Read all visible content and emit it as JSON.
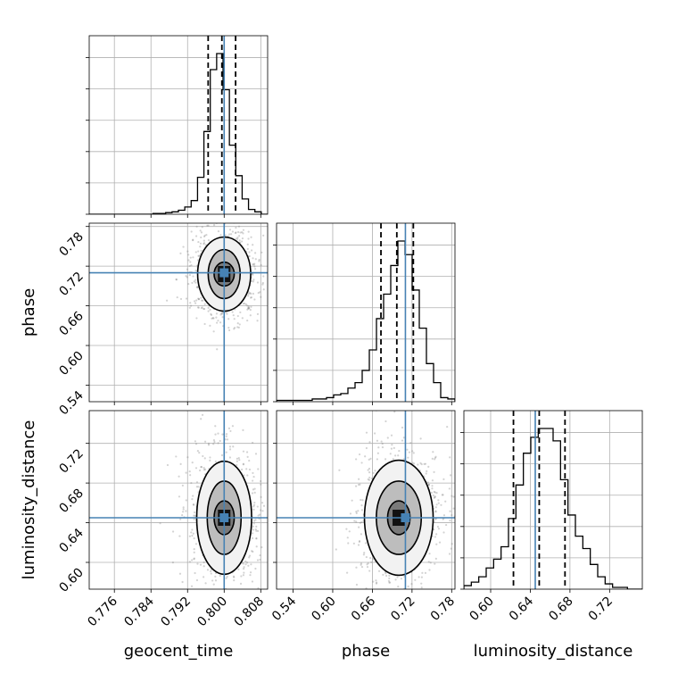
{
  "colors": {
    "truth": "#4682b4",
    "line": "#000000",
    "grid": "#b0b0b0",
    "scatter": "#808080"
  },
  "chart_data": {
    "type": "corner",
    "parameters": [
      "geocent_time",
      "phase",
      "luminosity_distance"
    ],
    "truths": {
      "geocent_time": 0.8,
      "phase": 0.71,
      "luminosity_distance": 0.645
    },
    "quantiles": {
      "geocent_time": [
        0.7965,
        0.7995,
        0.8025
      ],
      "phase": [
        0.673,
        0.697,
        0.722
      ],
      "luminosity_distance": [
        0.623,
        0.649,
        0.675
      ]
    },
    "ranges": {
      "geocent_time": [
        0.7705,
        0.8095
      ],
      "phase": [
        0.515,
        0.785
      ],
      "luminosity_distance": [
        0.573,
        0.753
      ]
    },
    "ticks": {
      "geocent_time": [
        "0.776",
        "0.784",
        "0.792",
        "0.800",
        "0.808"
      ],
      "phase": [
        "0.54",
        "0.60",
        "0.66",
        "0.72",
        "0.78"
      ],
      "luminosity_distance": [
        "0.60",
        "0.64",
        "0.68",
        "0.72"
      ]
    },
    "grid": true,
    "histograms": {
      "geocent_time": {
        "range": [
          0.7705,
          0.8095
        ],
        "counts": [
          0,
          0,
          0,
          0,
          0,
          0,
          0,
          0,
          0,
          0,
          1,
          1,
          2,
          3,
          5,
          9,
          17,
          46,
          103,
          180,
          200,
          155,
          86,
          48,
          19,
          6,
          3,
          0
        ]
      },
      "phase": {
        "range": [
          0.515,
          0.785
        ],
        "counts": [
          1,
          1,
          1,
          1,
          1,
          2,
          2,
          3,
          5,
          6,
          10,
          14,
          23,
          38,
          61,
          79,
          100,
          118,
          108,
          82,
          54,
          28,
          14,
          3,
          2
        ]
      },
      "luminosity_distance": {
        "range": [
          0.573,
          0.753
        ],
        "counts": [
          2,
          4,
          7,
          12,
          17,
          24,
          40,
          59,
          77,
          86,
          91,
          91,
          84,
          62,
          42,
          30,
          23,
          14,
          7,
          3,
          1,
          1,
          0,
          0
        ]
      }
    },
    "contours_2d": [
      {
        "x": "geocent_time",
        "y": "phase",
        "center": [
          0.8,
          0.708
        ],
        "levels_radii": [
          [
            0.0022,
            0.018
          ],
          [
            0.0035,
            0.037
          ],
          [
            0.0058,
            0.056
          ]
        ]
      },
      {
        "x": "geocent_time",
        "y": "luminosity_distance",
        "center": [
          0.8,
          0.645
        ],
        "levels_radii": [
          [
            0.0022,
            0.017
          ],
          [
            0.0037,
            0.037
          ],
          [
            0.006,
            0.057
          ]
        ]
      },
      {
        "x": "phase",
        "y": "luminosity_distance",
        "center": [
          0.7,
          0.645
        ],
        "levels_radii": [
          [
            0.017,
            0.017
          ],
          [
            0.034,
            0.037
          ],
          [
            0.052,
            0.058
          ]
        ]
      }
    ]
  }
}
